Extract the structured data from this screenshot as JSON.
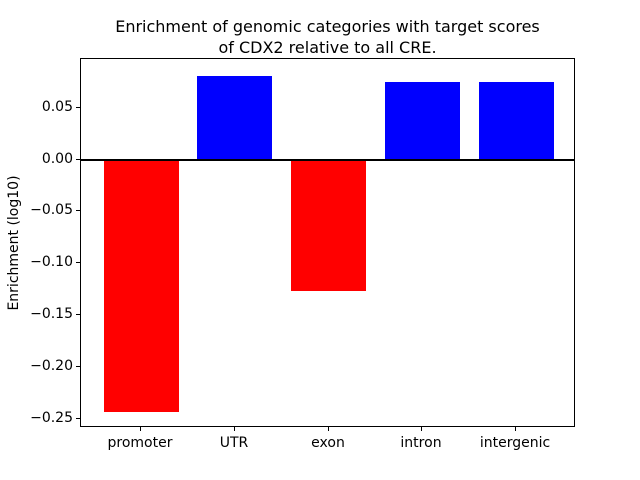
{
  "chart_data": {
    "type": "bar",
    "title": "Enrichment of genomic categories with target scores\nof CDX2 relative to all CRE.",
    "xlabel": "",
    "ylabel": "Enrichment (log10)",
    "categories": [
      "promoter",
      "UTR",
      "exon",
      "intron",
      "intergenic"
    ],
    "values": [
      -0.243,
      0.081,
      -0.126,
      0.075,
      0.075
    ],
    "bar_colors": [
      "#ff0000",
      "#0000ff",
      "#ff0000",
      "#0000ff",
      "#0000ff"
    ],
    "positive_color": "#0000ff",
    "negative_color": "#ff0000",
    "ylim": [
      -0.259,
      0.097
    ],
    "yticks": [
      0.05,
      0.0,
      -0.05,
      -0.1,
      -0.15,
      -0.2,
      -0.25
    ],
    "ytick_labels": [
      "0.05",
      "0.00",
      "−0.05",
      "−0.10",
      "−0.15",
      "−0.20",
      "−0.25"
    ],
    "grid": false,
    "legend": "none",
    "zero_line": true,
    "zero_line_color": "#000000",
    "background_color": "#ffffff",
    "axes_color": "#000000"
  }
}
